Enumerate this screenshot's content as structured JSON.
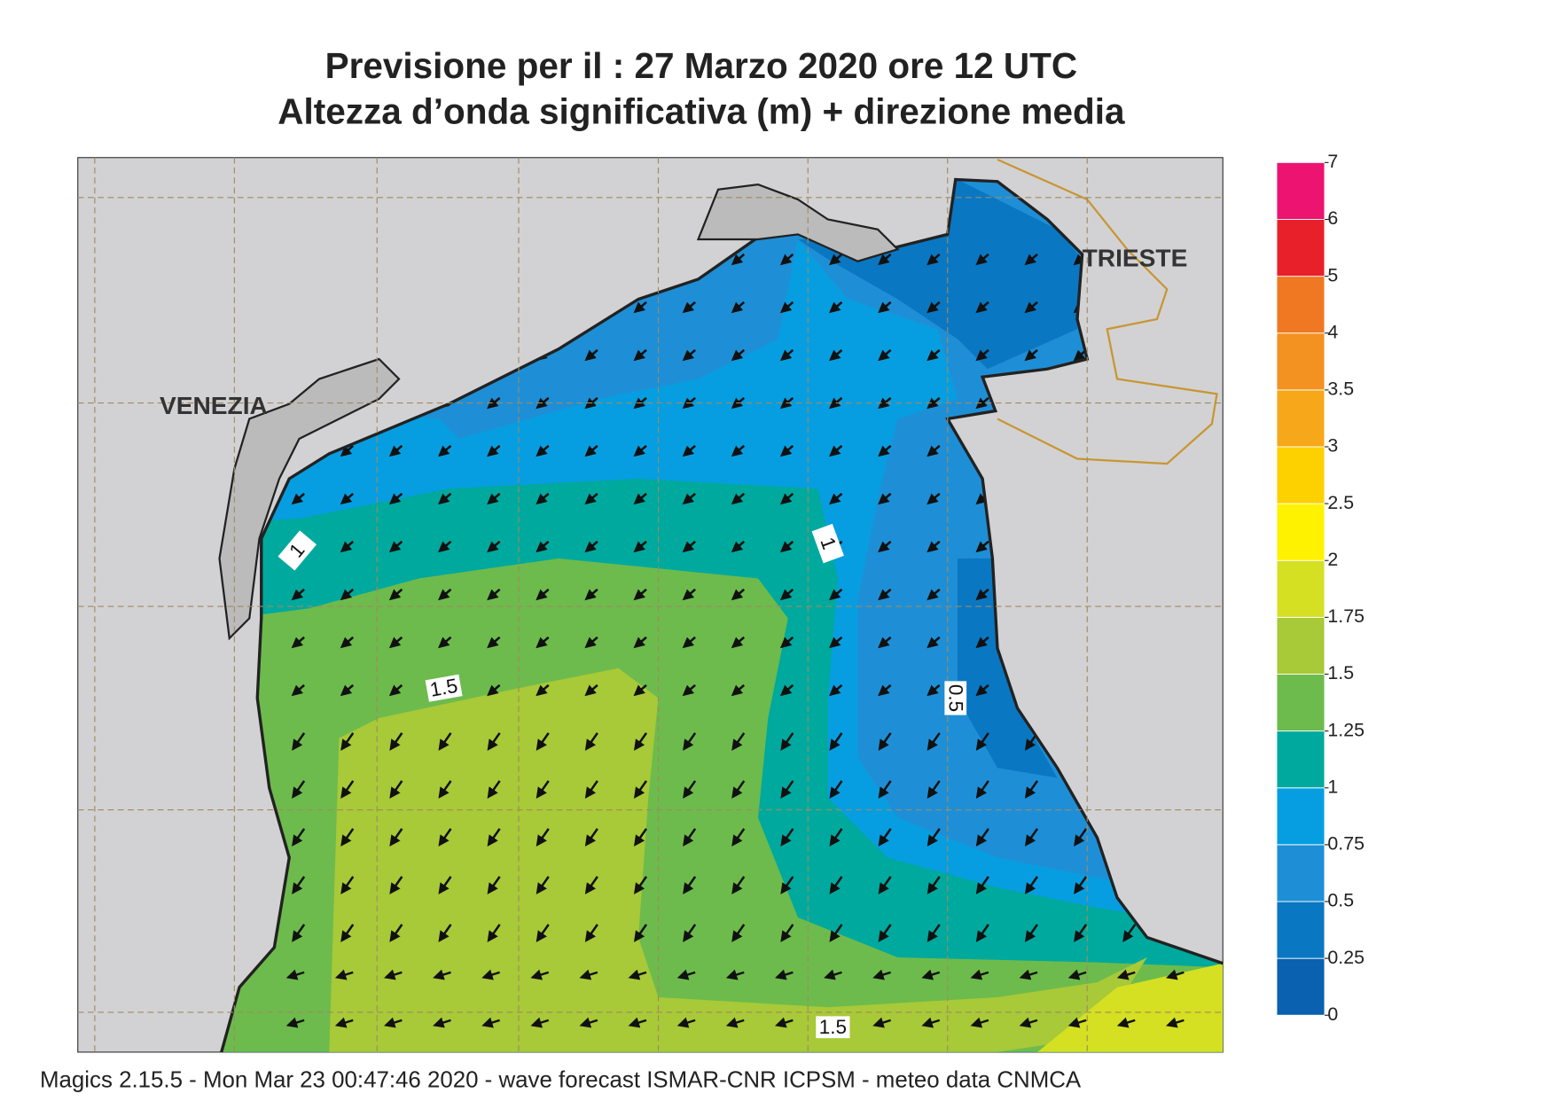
{
  "header": {
    "title_line1": "Previsione per il  :  27   Marzo   2020   ore 12 UTC",
    "title_line2": "Altezza d’onda significativa (m) + direzione media"
  },
  "map": {
    "cities": [
      "VENEZIA",
      "TRIESTE"
    ],
    "contour_labels": [
      "1",
      "1",
      "1.5",
      "0.5",
      "1.5"
    ]
  },
  "colorbar": {
    "ticks": [
      0,
      0.25,
      0.5,
      0.75,
      1,
      1.25,
      1.5,
      1.75,
      2,
      2.5,
      3,
      3.5,
      4,
      5,
      6,
      7
    ],
    "colors": [
      "#0961b0",
      "#0a77c2",
      "#1e8fd6",
      "#069ee0",
      "#00a99d",
      "#6dbb4c",
      "#a8c938",
      "#d4e021",
      "#fff200",
      "#fdd000",
      "#f6a81a",
      "#f39220",
      "#f07822",
      "#e8202a",
      "#ec1470"
    ]
  },
  "footer": "Magics 2.15.5 - Mon Mar 23 00:47:46 2020 - wave forecast  ISMAR-CNR  ICPSM - meteo data   CNMCA"
}
